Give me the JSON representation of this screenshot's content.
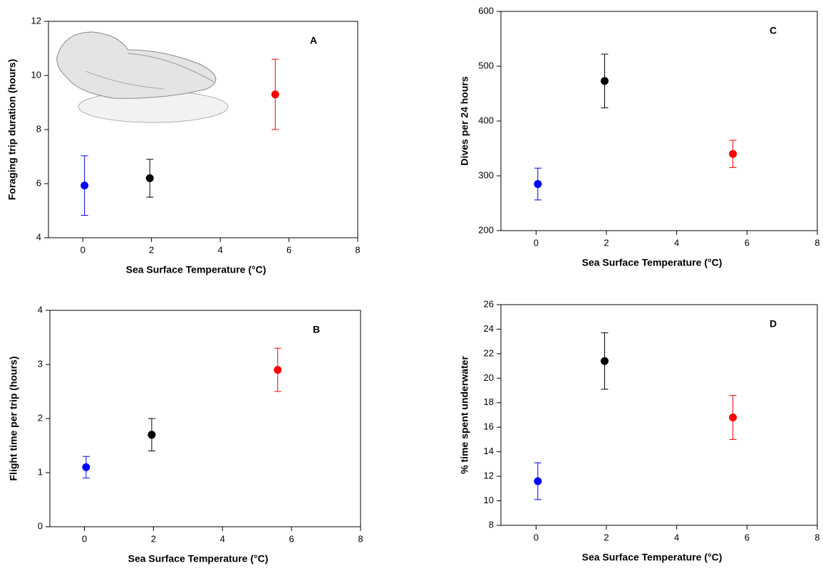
{
  "chart_data": [
    {
      "type": "scatter",
      "annotation": "A",
      "xlabel": "Sea Surface Temperature (°C)",
      "ylabel": "Foraging trip duration (hours)",
      "x": [
        0.05,
        1.95,
        5.6
      ],
      "values": [
        5.93,
        6.2,
        9.3
      ],
      "errors": [
        1.1,
        0.7,
        1.3
      ],
      "colors": [
        "#0000ff",
        "#000000",
        "#ff0000"
      ],
      "xlim": [
        -1,
        8
      ],
      "xticks": [
        0,
        2,
        4,
        6,
        8
      ],
      "ylim": [
        4,
        12
      ],
      "yticks": [
        4,
        6,
        8,
        10,
        12
      ]
    },
    {
      "type": "scatter",
      "annotation": "B",
      "xlabel": "Sea Surface Temperature (°C)",
      "ylabel": "Flight time per trip (hours)",
      "x": [
        0.05,
        1.95,
        5.6
      ],
      "values": [
        1.1,
        1.7,
        2.9
      ],
      "errors": [
        0.2,
        0.3,
        0.4
      ],
      "colors": [
        "#0000ff",
        "#000000",
        "#ff0000"
      ],
      "xlim": [
        -1,
        8
      ],
      "xticks": [
        0,
        2,
        4,
        6,
        8
      ],
      "ylim": [
        0,
        4
      ],
      "yticks": [
        0,
        1,
        2,
        3,
        4
      ]
    },
    {
      "type": "scatter",
      "annotation": "C",
      "xlabel": "Sea Surface Temperature (°C)",
      "ylabel": "Dives per 24 hours",
      "x": [
        0.05,
        1.95,
        5.6
      ],
      "values": [
        285,
        473,
        340
      ],
      "errors": [
        29,
        49,
        25
      ],
      "colors": [
        "#0000ff",
        "#000000",
        "#ff0000"
      ],
      "xlim": [
        -1,
        8
      ],
      "xticks": [
        0,
        2,
        4,
        6,
        8
      ],
      "ylim": [
        200,
        600
      ],
      "yticks": [
        200,
        300,
        400,
        500,
        600
      ]
    },
    {
      "type": "scatter",
      "annotation": "D",
      "xlabel": "Sea Surface Temperature (°C)",
      "ylabel": "% time spent underwater",
      "x": [
        0.05,
        1.95,
        5.6
      ],
      "values": [
        11.6,
        21.4,
        16.8
      ],
      "errors": [
        1.5,
        2.3,
        1.8
      ],
      "colors": [
        "#0000ff",
        "#000000",
        "#ff0000"
      ],
      "xlim": [
        -1,
        8
      ],
      "xticks": [
        0,
        2,
        4,
        6,
        8
      ],
      "ylim": [
        8,
        26
      ],
      "yticks": [
        8,
        10,
        12,
        14,
        16,
        18,
        20,
        22,
        24,
        26
      ]
    }
  ]
}
